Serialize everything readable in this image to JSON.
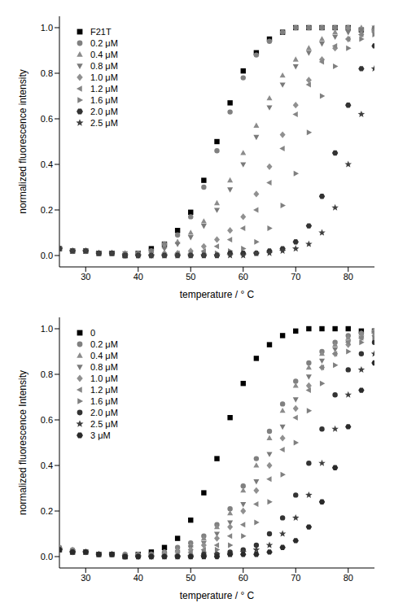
{
  "chart_data": [
    {
      "type": "scatter",
      "x_label": "temperature / ° C",
      "y_label": "normalized fluorescence intensity",
      "legend": "upper left",
      "x": [
        25,
        27.5,
        30,
        32.5,
        35,
        37.5,
        40,
        42.5,
        45,
        47.5,
        50,
        52.5,
        55,
        57.5,
        60,
        62.5,
        65,
        67.5,
        70,
        72.5,
        75,
        77.5,
        80,
        82.5,
        85
      ],
      "xlim": [
        25,
        85
      ],
      "xticks": [
        30,
        40,
        50,
        60,
        70,
        80
      ],
      "ylim": [
        -0.05,
        1.05
      ],
      "yticks": [
        {
          "value": 0,
          "label": "0.0"
        },
        0.2,
        0.4,
        0.6,
        0.8,
        {
          "value": 1,
          "label": "1.0"
        }
      ],
      "series": [
        {
          "name": "F21T",
          "color": "#000000",
          "marker": "square",
          "values": [
            0.03,
            0.02,
            0.02,
            0.01,
            0.01,
            0.0,
            0.01,
            0.03,
            0.05,
            0.11,
            0.19,
            0.33,
            0.5,
            0.67,
            0.81,
            0.89,
            0.95,
            0.98,
            1.0,
            1.0,
            1.0,
            1.0,
            1.0,
            0.99,
            0.99
          ]
        },
        {
          "name": "0.2 μM",
          "color": "#808080",
          "marker": "circle",
          "values": [
            0.03,
            0.02,
            0.02,
            0.01,
            0.01,
            0.0,
            0.01,
            0.02,
            0.05,
            0.09,
            0.17,
            0.3,
            0.46,
            0.63,
            0.78,
            0.88,
            0.94,
            0.98,
            1.0,
            1.0,
            1.0,
            1.0,
            1.0,
            0.99,
            0.99
          ]
        },
        {
          "name": "0.4 μM",
          "color": "#8c8c8c",
          "marker": "triangle-up",
          "values": [
            0.03,
            0.02,
            0.02,
            0.01,
            0.01,
            0.01,
            0.01,
            0.02,
            0.04,
            0.06,
            0.1,
            0.15,
            0.23,
            0.33,
            0.45,
            0.57,
            0.69,
            0.79,
            0.86,
            0.91,
            0.95,
            0.98,
            1.0,
            1.0,
            1.0
          ]
        },
        {
          "name": "0.8 μM",
          "color": "#7a7a7a",
          "marker": "triangle-down",
          "values": [
            0.03,
            0.02,
            0.02,
            0.01,
            0.01,
            0.01,
            0.01,
            0.02,
            0.03,
            0.05,
            0.08,
            0.13,
            0.2,
            0.29,
            0.4,
            0.52,
            0.65,
            0.75,
            0.83,
            0.89,
            0.93,
            0.96,
            0.98,
            0.99,
            1.0
          ]
        },
        {
          "name": "1.0 μM",
          "color": "#909090",
          "marker": "diamond",
          "values": [
            0.03,
            0.02,
            0.02,
            0.01,
            0.01,
            0.0,
            0.0,
            0.0,
            0.01,
            0.01,
            0.02,
            0.04,
            0.07,
            0.11,
            0.17,
            0.27,
            0.39,
            0.53,
            0.66,
            0.77,
            0.86,
            0.91,
            0.95,
            0.97,
            0.98
          ]
        },
        {
          "name": "1.2 μM",
          "color": "#858585",
          "marker": "triangle-left",
          "values": [
            0.03,
            0.02,
            0.02,
            0.01,
            0.01,
            0.0,
            0.0,
            0.0,
            0.0,
            0.01,
            0.01,
            0.02,
            0.04,
            0.07,
            0.12,
            0.2,
            0.32,
            0.47,
            0.62,
            0.75,
            0.85,
            0.92,
            0.95,
            0.97,
            0.99
          ]
        },
        {
          "name": "1.6 μM",
          "color": "#7f7f7f",
          "marker": "triangle-right",
          "values": [
            0.03,
            0.02,
            0.02,
            0.01,
            0.01,
            0.0,
            0.0,
            0.0,
            0.0,
            0.0,
            0.0,
            0.01,
            0.01,
            0.02,
            0.03,
            0.06,
            0.12,
            0.22,
            0.36,
            0.54,
            0.7,
            0.83,
            0.91,
            0.95,
            0.97
          ]
        },
        {
          "name": "2.0 μM",
          "color": "#333333",
          "marker": "hexagon",
          "values": [
            0.03,
            0.02,
            0.02,
            0.01,
            0.01,
            0.0,
            0.0,
            0.0,
            0.0,
            0.0,
            0.0,
            0.0,
            0.0,
            0.01,
            0.01,
            0.01,
            0.02,
            0.03,
            0.06,
            0.13,
            0.26,
            0.45,
            0.66,
            0.82,
            0.92
          ]
        },
        {
          "name": "2.5 μM",
          "color": "#404040",
          "marker": "star",
          "values": [
            0.03,
            0.02,
            0.02,
            0.01,
            0.01,
            0.0,
            0.0,
            0.0,
            0.0,
            0.0,
            0.0,
            0.0,
            0.0,
            0.0,
            0.0,
            0.01,
            0.01,
            0.02,
            0.03,
            0.05,
            0.1,
            0.21,
            0.4,
            0.62,
            0.82
          ]
        }
      ]
    },
    {
      "type": "scatter",
      "x_label": "temperature / ° C",
      "y_label": "normalized fluorescence Intensity",
      "legend": "upper left",
      "x": [
        25,
        27.5,
        30,
        32.5,
        35,
        37.5,
        40,
        42.5,
        45,
        47.5,
        50,
        52.5,
        55,
        57.5,
        60,
        62.5,
        65,
        67.5,
        70,
        72.5,
        75,
        77.5,
        80,
        82.5,
        85
      ],
      "xlim": [
        25,
        85
      ],
      "xticks": [
        30,
        40,
        50,
        60,
        70,
        80
      ],
      "ylim": [
        -0.05,
        1.05
      ],
      "yticks": [
        {
          "value": 0,
          "label": "0.0"
        },
        0.2,
        0.4,
        0.6,
        0.8,
        {
          "value": 1,
          "label": "1.0"
        }
      ],
      "series": [
        {
          "name": "0",
          "color": "#000000",
          "marker": "square",
          "values": [
            0.03,
            0.02,
            0.02,
            0.01,
            0.01,
            0.0,
            0.01,
            0.02,
            0.04,
            0.08,
            0.16,
            0.28,
            0.43,
            0.61,
            0.76,
            0.87,
            0.93,
            0.97,
            0.99,
            1.0,
            1.0,
            1.0,
            1.0,
            0.99,
            0.99
          ]
        },
        {
          "name": "0.2 μM",
          "color": "#808080",
          "marker": "circle",
          "values": [
            0.04,
            0.03,
            0.02,
            0.01,
            0.01,
            0.01,
            0.01,
            0.01,
            0.02,
            0.04,
            0.06,
            0.09,
            0.14,
            0.21,
            0.31,
            0.43,
            0.55,
            0.67,
            0.77,
            0.85,
            0.9,
            0.94,
            0.97,
            0.98,
            0.99
          ]
        },
        {
          "name": "0.4 μM",
          "color": "#8c8c8c",
          "marker": "triangle-up",
          "values": [
            0.04,
            0.03,
            0.02,
            0.01,
            0.01,
            0.01,
            0.01,
            0.01,
            0.02,
            0.03,
            0.05,
            0.08,
            0.13,
            0.19,
            0.29,
            0.4,
            0.52,
            0.64,
            0.75,
            0.83,
            0.89,
            0.93,
            0.96,
            0.98,
            0.99
          ]
        },
        {
          "name": "0.8 μM",
          "color": "#7a7a7a",
          "marker": "triangle-down",
          "values": [
            0.03,
            0.02,
            0.02,
            0.01,
            0.01,
            0.0,
            0.0,
            0.01,
            0.01,
            0.02,
            0.04,
            0.06,
            0.1,
            0.15,
            0.23,
            0.33,
            0.45,
            0.57,
            0.69,
            0.79,
            0.86,
            0.91,
            0.94,
            0.96,
            0.98
          ]
        },
        {
          "name": "1.0 μM",
          "color": "#909090",
          "marker": "diamond",
          "values": [
            0.03,
            0.02,
            0.02,
            0.01,
            0.01,
            0.0,
            0.0,
            0.0,
            0.01,
            0.02,
            0.03,
            0.05,
            0.08,
            0.13,
            0.2,
            0.29,
            0.4,
            0.52,
            0.65,
            0.75,
            0.83,
            0.89,
            0.93,
            0.96,
            0.97
          ]
        },
        {
          "name": "1.2 μM",
          "color": "#858585",
          "marker": "triangle-left",
          "values": [
            0.03,
            0.02,
            0.02,
            0.01,
            0.01,
            0.0,
            0.0,
            0.0,
            0.0,
            0.01,
            0.02,
            0.03,
            0.05,
            0.09,
            0.14,
            0.23,
            0.34,
            0.47,
            0.61,
            0.73,
            0.83,
            0.89,
            0.94,
            0.96,
            0.98
          ]
        },
        {
          "name": "1.6 μM",
          "color": "#7f7f7f",
          "marker": "triangle-right",
          "values": [
            0.03,
            0.02,
            0.02,
            0.01,
            0.01,
            0.0,
            0.0,
            0.0,
            0.0,
            0.0,
            0.01,
            0.02,
            0.03,
            0.05,
            0.09,
            0.15,
            0.24,
            0.36,
            0.5,
            0.64,
            0.76,
            0.84,
            0.9,
            0.94,
            0.96
          ]
        },
        {
          "name": "2.0 μM",
          "color": "#333333",
          "marker": "circle",
          "values": [
            0.03,
            0.02,
            0.02,
            0.01,
            0.01,
            0.0,
            0.0,
            0.0,
            0.0,
            0.0,
            0.0,
            0.01,
            0.01,
            0.02,
            0.03,
            0.05,
            0.1,
            0.17,
            0.27,
            0.41,
            0.56,
            0.71,
            0.82,
            0.89,
            0.94
          ]
        },
        {
          "name": "2.5 μM",
          "color": "#404040",
          "marker": "star",
          "values": [
            0.03,
            0.02,
            0.02,
            0.01,
            0.01,
            0.0,
            0.0,
            0.0,
            0.0,
            0.0,
            0.0,
            0.0,
            0.01,
            0.01,
            0.02,
            0.03,
            0.05,
            0.1,
            0.17,
            0.27,
            0.41,
            0.56,
            0.71,
            0.82,
            0.89
          ]
        },
        {
          "name": "3 μM",
          "color": "#2a2a2a",
          "marker": "hexagon",
          "values": [
            0.03,
            0.02,
            0.02,
            0.01,
            0.01,
            0.0,
            0.0,
            0.0,
            0.0,
            0.0,
            0.0,
            0.0,
            0.0,
            0.01,
            0.01,
            0.01,
            0.02,
            0.04,
            0.07,
            0.13,
            0.24,
            0.39,
            0.57,
            0.73,
            0.85
          ]
        }
      ]
    }
  ]
}
